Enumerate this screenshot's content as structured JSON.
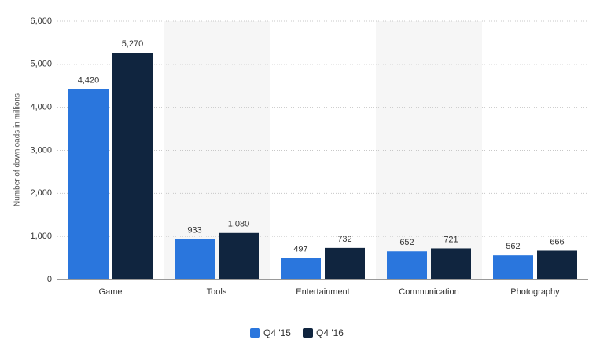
{
  "chart_data": {
    "type": "bar",
    "y_label": "Number of downloads in millions",
    "categories": [
      "Game",
      "Tools",
      "Entertainment",
      "Communication",
      "Photography"
    ],
    "series": [
      {
        "name": "Q4 '15",
        "color": "#2a76dd",
        "values": [
          4420,
          933,
          497,
          652,
          562
        ],
        "value_labels": [
          "4,420",
          "933",
          "497",
          "652",
          "562"
        ]
      },
      {
        "name": "Q4 '16",
        "color": "#10253f",
        "values": [
          5270,
          1080,
          732,
          721,
          666
        ],
        "value_labels": [
          "5,270",
          "1,080",
          "732",
          "721",
          "666"
        ]
      }
    ],
    "ylim": [
      0,
      6000
    ],
    "yticks": [
      0,
      {
        "value": 1000,
        "label": "1,000"
      },
      {
        "value": 2000,
        "label": "2,000"
      },
      {
        "value": 3000,
        "label": "3,000"
      },
      {
        "value": 4000,
        "label": "4,000"
      },
      {
        "value": 5000,
        "label": "5,000"
      },
      {
        "value": 6000,
        "label": "6,000"
      }
    ],
    "grid": true,
    "legend": "bottom"
  }
}
